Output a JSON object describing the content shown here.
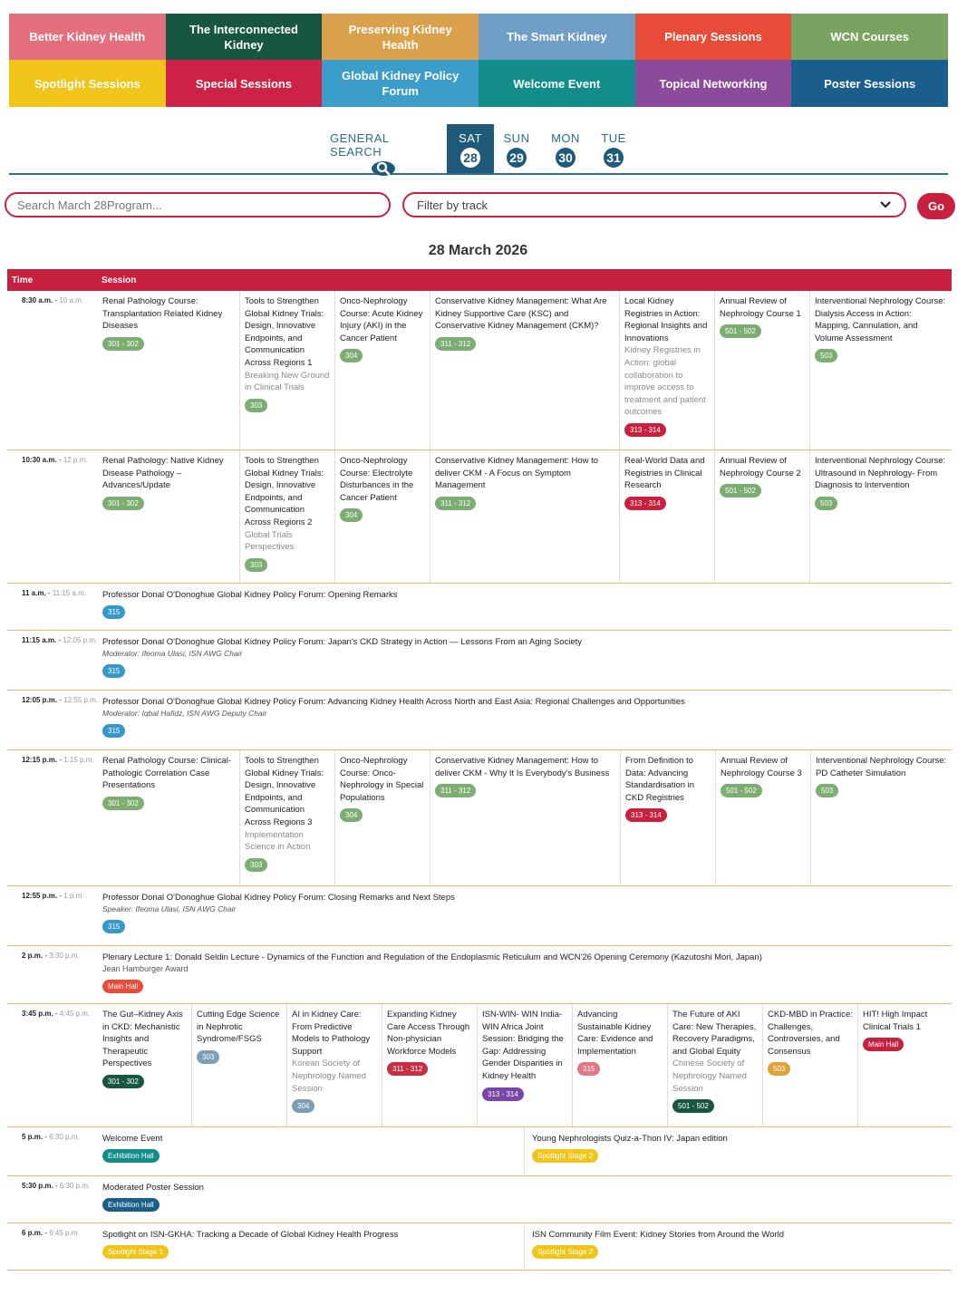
{
  "tracks": [
    {
      "label": "Better Kidney Health",
      "color": "#e5707d"
    },
    {
      "label": "The Interconnected Kidney",
      "color": "#17573f"
    },
    {
      "label": "Preserving Kidney Health",
      "color": "#dba04c"
    },
    {
      "label": "The Smart Kidney",
      "color": "#6f9fc6"
    },
    {
      "label": "Plenary Sessions",
      "color": "#e84b38"
    },
    {
      "label": "WCN Courses",
      "color": "#7aa260"
    },
    {
      "label": "Spotlight Sessions",
      "color": "#f0c419"
    },
    {
      "label": "Special Sessions",
      "color": "#ce2148"
    },
    {
      "label": "Global Kidney Policy Forum",
      "color": "#3d9dc9"
    },
    {
      "label": "Welcome Event",
      "color": "#128d8a"
    },
    {
      "label": "Topical Networking",
      "color": "#8c4a9b"
    },
    {
      "label": "Poster Sessions",
      "color": "#1a5e8b"
    }
  ],
  "days": {
    "general_search": "GENERAL SEARCH",
    "items": [
      {
        "label": "SAT",
        "num": "28"
      },
      {
        "label": "SUN",
        "num": "29"
      },
      {
        "label": "MON",
        "num": "30"
      },
      {
        "label": "TUE",
        "num": "31"
      }
    ]
  },
  "filters": {
    "search_placeholder": "Search March 28Program...",
    "track_select": "Filter by track",
    "go": "Go"
  },
  "date_title": "28 March 2026",
  "table_headers": {
    "time": "Time",
    "session": "Session"
  },
  "badge_colors": {
    "green": "#7cae72",
    "red": "#c8203f",
    "blue": "#3797c9",
    "slate": "#7e9db8",
    "darkgreen": "#17573f",
    "crimson": "#c72f45",
    "purple": "#7a45a8",
    "pink": "#e07784",
    "gold": "#e0a33a",
    "teal": "#128d8a",
    "navy": "#1a5e8b",
    "yellow": "#f0c419",
    "orange": "#e84b38"
  },
  "rows": [
    {
      "start": "8:30 a.m.",
      "end": "10 a.m.",
      "sessions": [
        {
          "title": "Renal Pathology Course: Transplantation Related Kidney Diseases",
          "sub": "",
          "room": "301 - 302",
          "badge": "green"
        },
        {
          "title": "Tools to Strengthen Global Kidney Trials: Design, Innovative Endpoints, and Communication Across Regions 1",
          "sub": "Breaking New Ground in Clinical Trials",
          "room": "303",
          "badge": "green"
        },
        {
          "title": "Onco-Nephrology Course: Acute Kidney Injury (AKI) in the Cancer Patient",
          "sub": "",
          "room": "304",
          "badge": "green"
        },
        {
          "title": "Conservative Kidney Management: What Are Kidney Supportive Care (KSC) and Conservative Kidney Management (CKM)?",
          "sub": "",
          "room": "311 - 312",
          "badge": "green"
        },
        {
          "title": "Local Kidney Registries in Action: Regional Insights and Innovations",
          "sub": "Kidney Registries in Action: global collaboration to improve access to treatment and patient outcomes",
          "room": "313 - 314",
          "badge": "red"
        },
        {
          "title": "Annual Review of Nephrology Course 1",
          "sub": "",
          "room": "501 - 502",
          "badge": "green"
        },
        {
          "title": "Interventional Nephrology Course: Dialysis Access in Action: Mapping, Cannulation, and Volume Assessment",
          "sub": "",
          "room": "503",
          "badge": "green"
        }
      ]
    },
    {
      "start": "10:30 a.m.",
      "end": "12 p.m.",
      "sessions": [
        {
          "title": "Renal Pathology: Native Kidney Disease Pathology – Advances/Update",
          "sub": "",
          "room": "301 - 302",
          "badge": "green"
        },
        {
          "title": "Tools to Strengthen Global Kidney Trials: Design, Innovative Endpoints, and Communication Across Regions 2",
          "sub": "Global Trials Perspectives",
          "room": "303",
          "badge": "green"
        },
        {
          "title": "Onco-Nephrology Course: Electrolyte Disturbances in the Cancer Patient",
          "sub": "",
          "room": "304",
          "badge": "green"
        },
        {
          "title": "Conservative Kidney Management: How to deliver CKM - A Focus on Symptom Management",
          "sub": "",
          "room": "311 - 312",
          "badge": "green"
        },
        {
          "title": "Real-World Data and Registries in Clinical Research",
          "sub": "",
          "room": "313 - 314",
          "badge": "red"
        },
        {
          "title": "Annual Review of Nephrology Course 2",
          "sub": "",
          "room": "501 - 502",
          "badge": "green"
        },
        {
          "title": "Interventional Nephrology Course: Ultrasound in Nephrology- From Diagnosis to Intervention",
          "sub": "",
          "room": "503",
          "badge": "green"
        }
      ]
    },
    {
      "start": "11 a.m.",
      "end": "11:15 a.m.",
      "title": "Professor Donal O'Donoghue Global Kidney Policy Forum: Opening Remarks",
      "sub": "",
      "room": "315",
      "badge": "blue"
    },
    {
      "start": "11:15 a.m.",
      "end": "12:05 p.m.",
      "title": "Professor Donal O'Donoghue Global Kidney Policy Forum: Japan's CKD Strategy in Action — Lessons From an Aging Society",
      "sub": "Moderator: Ifeoma Ulasi, ISN AWG Chair",
      "room": "315",
      "badge": "blue"
    },
    {
      "start": "12:05 p.m.",
      "end": "12:55 p.m.",
      "title": "Professor Donal O'Donoghue Global Kidney Policy Forum: Advancing Kidney Health Across North and East Asia: Regional Challenges and Opportunities",
      "sub": "Moderator: Iqbal Hafidz, ISN AWG Deputy Chair",
      "room": "315",
      "badge": "blue"
    },
    {
      "start": "12:15 p.m.",
      "end": "1:15 p.m.",
      "sessions": [
        {
          "title": "Renal Pathology Course: Clinical-Pathologic Correlation Case Presentations",
          "sub": "",
          "room": "301 - 302",
          "badge": "green"
        },
        {
          "title": "Tools to Strengthen Global Kidney Trials: Design, Innovative Endpoints, and Communication Across Regions 3",
          "sub": "Implementation Science in Action",
          "room": "303",
          "badge": "green"
        },
        {
          "title": "Onco-Nephrology Course: Onco-Nephrology in Special Populations",
          "sub": "",
          "room": "304",
          "badge": "green"
        },
        {
          "title": "Conservative Kidney Management: How to deliver CKM - Why It Is Everybody's Business",
          "sub": "",
          "room": "311 - 312",
          "badge": "green"
        },
        {
          "title": "From Definition to Data: Advancing Standardisation in CKD Registries",
          "sub": "",
          "room": "313 - 314",
          "badge": "red"
        },
        {
          "title": "Annual Review of Nephrology Course 3",
          "sub": "",
          "room": "501 - 502",
          "badge": "green"
        },
        {
          "title": "Interventional Nephrology Course: PD Catheter Simulation",
          "sub": "",
          "room": "503",
          "badge": "green"
        }
      ]
    },
    {
      "start": "12:55 p.m.",
      "end": "1 p.m.",
      "title": "Professor Donal O'Donoghue Global Kidney Policy Forum: Closing Remarks and Next Steps",
      "sub": "Speaker: Ifeoma Ulasi, ISN AWG Chair",
      "room": "315",
      "badge": "blue"
    },
    {
      "start": "2 p.m.",
      "end": "3:30 p.m.",
      "title": "Plenary Lecture 1: Donald Seldin Lecture - Dynamics of the Function and Regulation of the Endoplasmic Reticulum and WCN'26 Opening Ceremony (Kazutoshi Mori, Japan)",
      "award": "Jean Hamburger Award",
      "room": "Main Hall",
      "badge": "orange"
    },
    {
      "start": "3:45 p.m.",
      "end": "4:45 p.m.",
      "sessions": [
        {
          "title": "The Gut–Kidney Axis in CKD: Mechanistic Insights and Therapeutic Perspectives",
          "sub": "",
          "room": "301 - 302",
          "badge": "darkgreen"
        },
        {
          "title": "Cutting Edge Science in Nephrotic Syndrome/FSGS",
          "sub": "",
          "room": "303",
          "badge": "slate"
        },
        {
          "title": "AI in Kidney Care: From Predictive Models to Pathology Support",
          "sub": "Korean Society of Nephrology Named Session",
          "room": "304",
          "badge": "slate"
        },
        {
          "title": "Expanding Kidney Care Access Through Non-physician Workforce Models",
          "sub": "",
          "room": "311 - 312",
          "badge": "crimson"
        },
        {
          "title": "ISN-WIN- WIN India-WIN Africa Joint Session: Bridging the Gap: Addressing Gender Disparities in Kidney Health",
          "sub": "",
          "room": "313 - 314",
          "badge": "purple"
        },
        {
          "title": "Advancing Sustainable Kidney Care: Evidence and Implementation",
          "sub": "",
          "room": "315",
          "badge": "pink"
        },
        {
          "title": "The Future of AKI Care: New Therapies, Recovery Paradigms, and Global Equity",
          "sub": "Chinese Society of Nephrology Named Session",
          "room": "501 - 502",
          "badge": "darkgreen"
        },
        {
          "title": "CKD-MBD in Practice: Challenges, Controversies, and Consensus",
          "sub": "",
          "room": "503",
          "badge": "gold"
        },
        {
          "title": "HIT! High Impact Clinical Trials 1",
          "sub": "",
          "room": "Main Hall",
          "badge": "red"
        }
      ]
    },
    {
      "start": "5 p.m.",
      "end": "6:30 p.m.",
      "split": [
        {
          "title": "Welcome Event",
          "room": "Exhibition Hall",
          "badge": "teal"
        },
        {
          "title": "Young Nephrologists Quiz-a-Thon IV: Japan edition",
          "room": "Spotlight Stage 2",
          "badge": "yellow"
        }
      ]
    },
    {
      "start": "5:30 p.m.",
      "end": "6:30 p.m.",
      "title": "Moderated Poster Session",
      "sub": "",
      "room": "Exhibition Hall",
      "badge": "navy"
    },
    {
      "start": "6 p.m.",
      "end": "6:45 p.m.",
      "split": [
        {
          "title": "Spotlight on ISN-GKHA: Tracking a Decade of Global Kidney Health Progress",
          "room": "Spotlight Stage 1",
          "badge": "yellow"
        },
        {
          "title": "ISN Community Film Event: Kidney Stories from Around the World",
          "room": "Spotlight Stage 2",
          "badge": "yellow"
        }
      ]
    }
  ]
}
